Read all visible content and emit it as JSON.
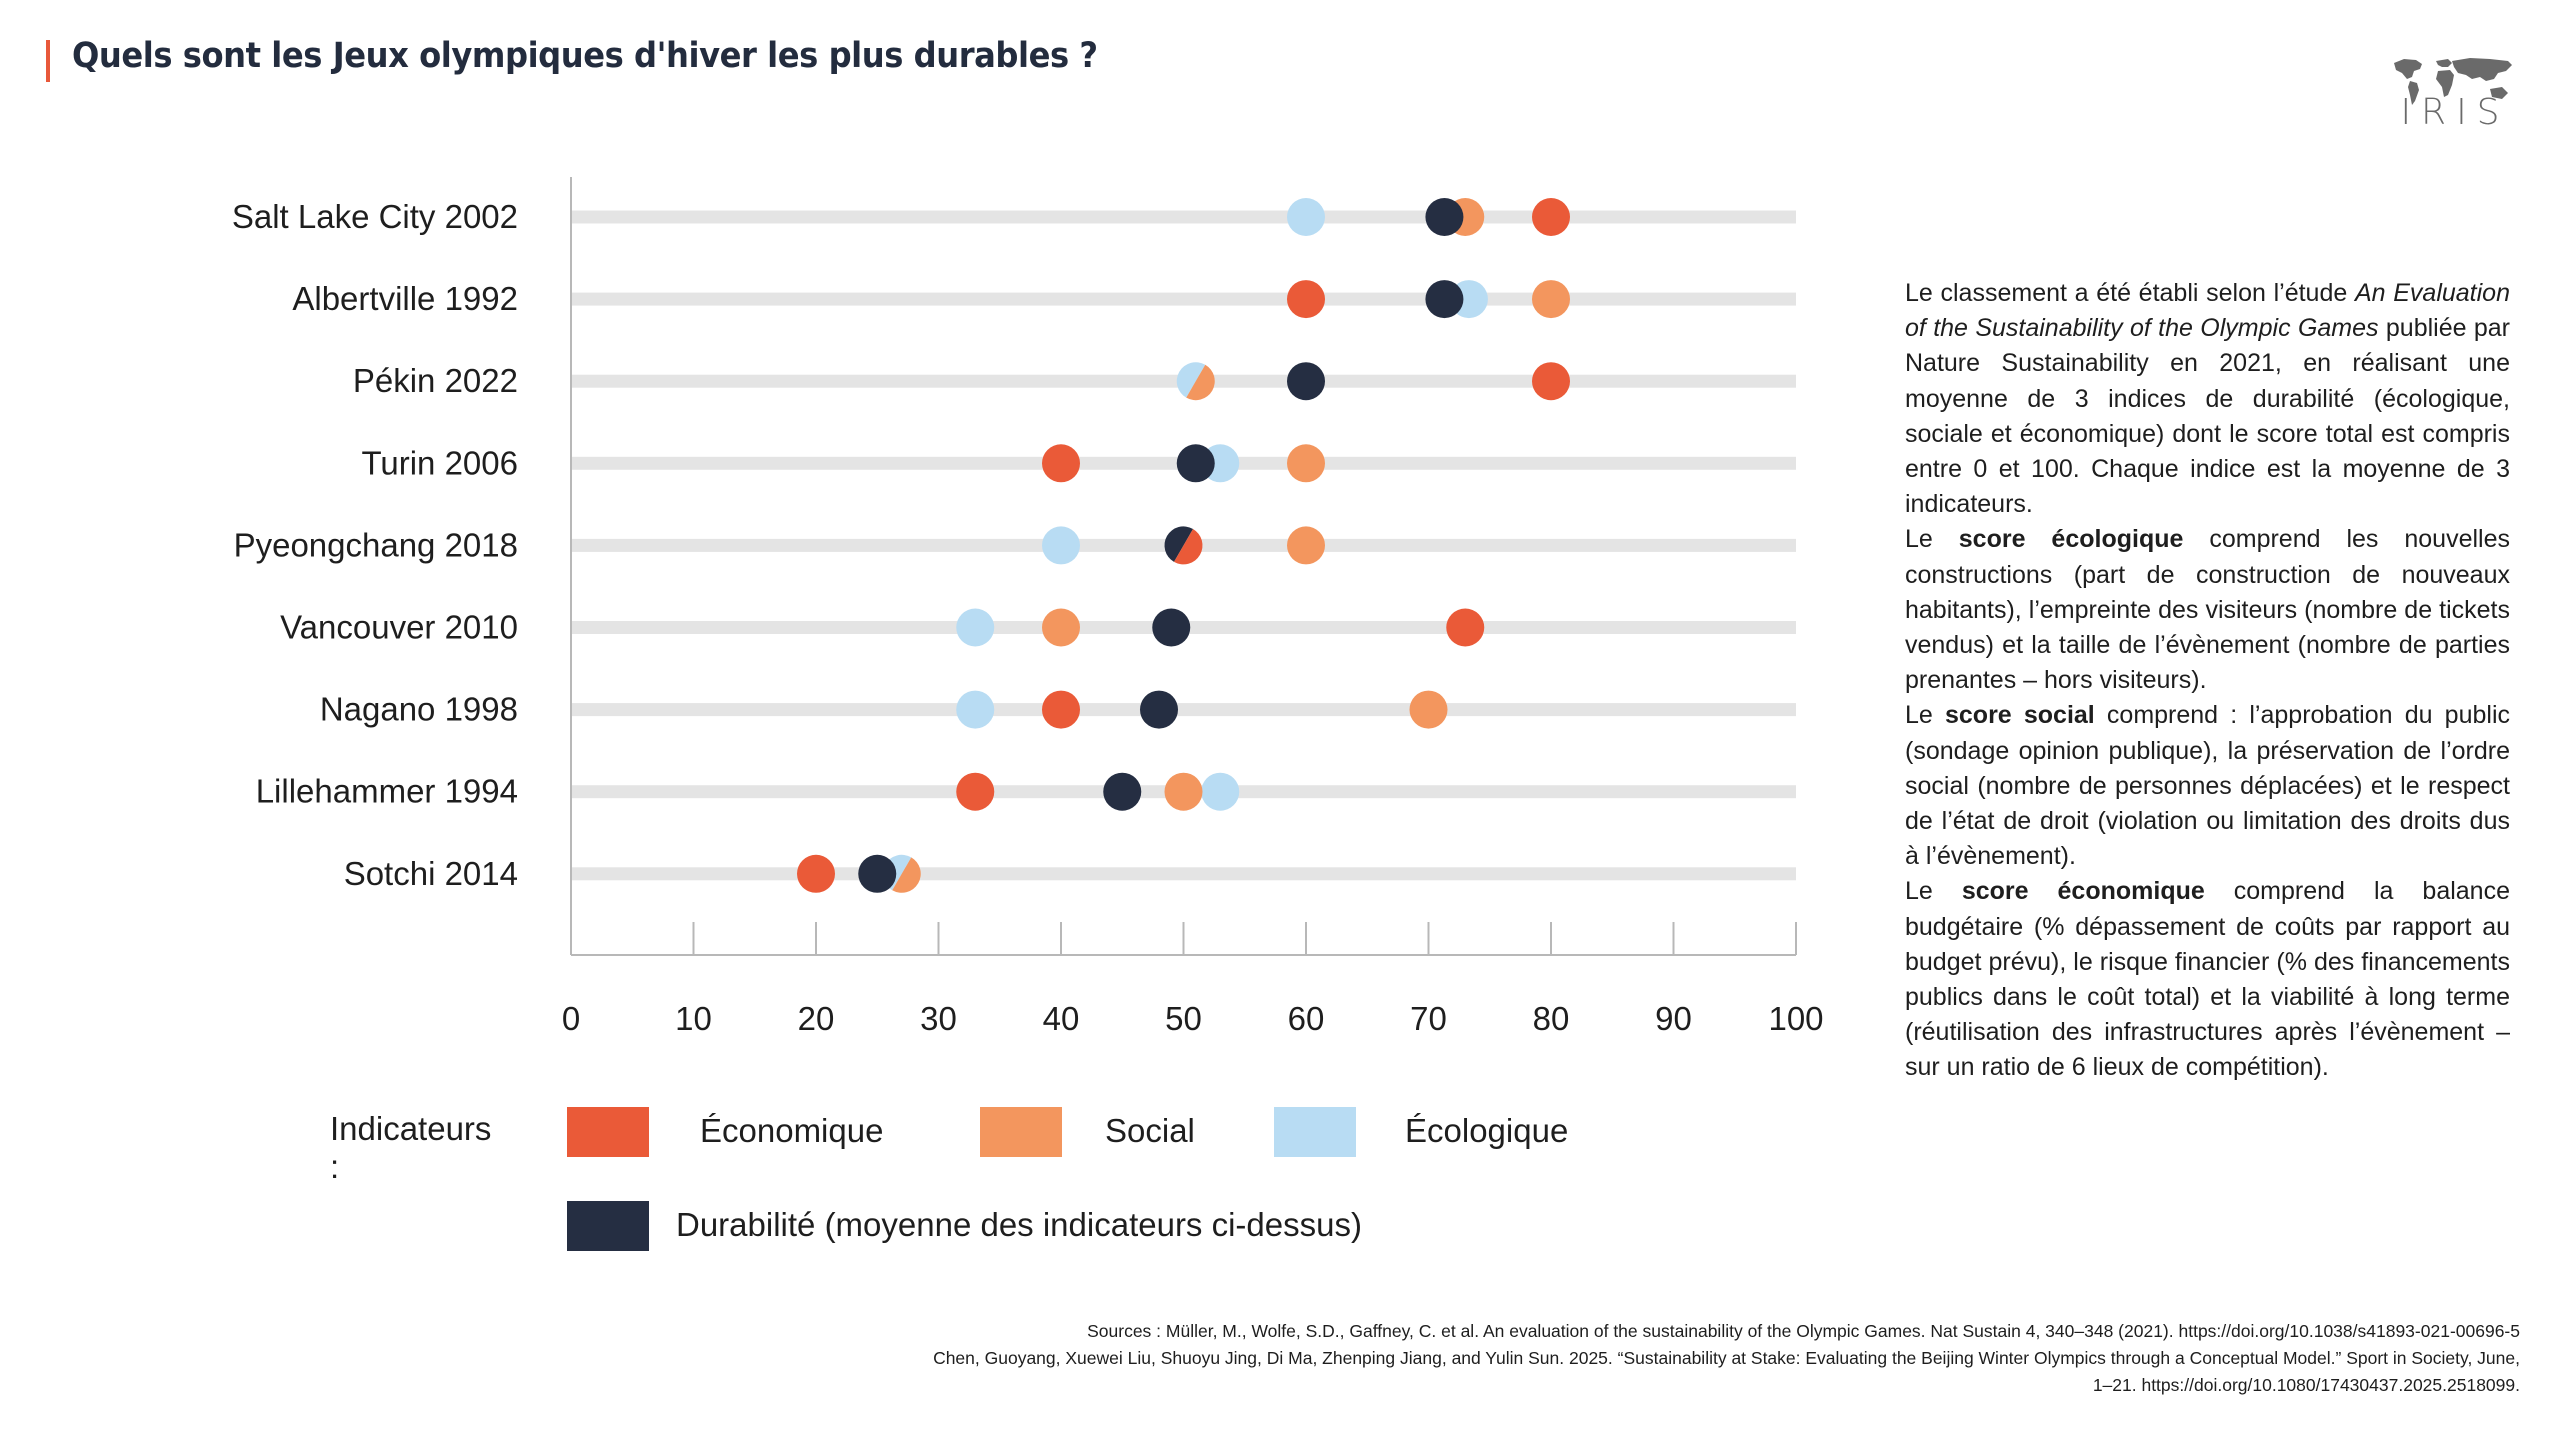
{
  "header": {
    "title": "Quels sont les Jeux olympiques d'hiver les plus durables ?",
    "accent_color": "#e8583a",
    "logo_text": "IRIS",
    "logo_icon": "world-map-icon"
  },
  "chart_data": {
    "type": "scatter",
    "subtype": "dot-plot",
    "title": "Quels sont les Jeux olympiques d'hiver les plus durables ?",
    "xlabel": "",
    "ylabel": "",
    "xlim": [
      0,
      100
    ],
    "x_ticks": [
      0,
      10,
      20,
      30,
      40,
      50,
      60,
      70,
      80,
      90,
      100
    ],
    "grid": false,
    "categories": [
      "Salt Lake City 2002",
      "Albertville 1992",
      "Pékin 2022",
      "Turin 2006",
      "Pyeongchang 2018",
      "Vancouver 2010",
      "Nagano 1998",
      "Lillehammer 1994",
      "Sotchi 2014"
    ],
    "series": [
      {
        "key": "economique",
        "name": "Économique",
        "color": "#ea5a38",
        "values": [
          80,
          60,
          80,
          40,
          50,
          73,
          40,
          33,
          20
        ]
      },
      {
        "key": "social",
        "name": "Social",
        "color": "#f3965e",
        "values": [
          73,
          80,
          51,
          60,
          60,
          40,
          70,
          50,
          27
        ]
      },
      {
        "key": "ecologique",
        "name": "Écologique",
        "color": "#b8dcf3",
        "values": [
          60,
          73.3,
          51,
          53,
          40,
          33,
          33,
          53,
          27
        ]
      },
      {
        "key": "durabilite",
        "name": "Durabilité (moyenne des indicateurs ci-dessus)",
        "color": "#252e42",
        "values": [
          71.3,
          71.3,
          60,
          51,
          50,
          49,
          48,
          45,
          25
        ]
      }
    ],
    "legend_title": "Indicateurs :",
    "legend_position": "bottom"
  },
  "legend": {
    "title": "Indicateurs :",
    "items": [
      {
        "label": "Économique",
        "color": "#ea5a38"
      },
      {
        "label": "Social",
        "color": "#f3965e"
      },
      {
        "label": "Écologique",
        "color": "#b8dcf3"
      },
      {
        "label": "Durabilité (moyenne des indicateurs ci-dessus)",
        "color": "#252e42"
      }
    ]
  },
  "description": {
    "p1_a": "Le classement a été établi selon l’étude ",
    "p1_italic": "An Evaluation of the Sustainability of the Olympic Games",
    "p1_b": " publiée par Nature Sustainability en 2021, en réalisant une moyenne de 3 indices de durabilité (écologique, sociale et économique) dont le score total est compris entre 0 et 100. Chaque indice est la moyenne de 3 indicateurs.",
    "p2_a": "Le ",
    "p2_bold": "score écologique",
    "p2_b": " comprend les nouvelles constructions (part de construction de nouveaux habitants), l’empreinte des visiteurs (nombre de tickets vendus) et la taille de l’évènement (nombre de parties prenantes – hors visiteurs).",
    "p3_a": "Le ",
    "p3_bold": "score social",
    "p3_b": " comprend : l’approbation du public (sondage opinion publique), la préservation de l’ordre social (nombre de personnes déplacées) et le respect de l’état de droit (violation ou limitation des droits dus à l’évènement).",
    "p4_a": "Le ",
    "p4_bold": "score économique",
    "p4_b": " comprend la balance budgétaire (% dépassement de coûts par rapport au budget prévu), le risque financier (% des financements publics dans le coût total) et la viabilité à long terme (réutilisation des infrastructures après l’évènement – sur un ratio de 6 lieux de compétition)."
  },
  "sources": {
    "line1": "Sources : Müller, M., Wolfe, S.D., Gaffney, C. et al. An evaluation of the sustainability of the Olympic Games. Nat Sustain 4, 340–348 (2021). https://doi.org/10.1038/s41893-021-00696-5",
    "line2": "Chen, Guoyang, Xuewei Liu, Shuoyu Jing, Di Ma, Zhenping Jiang, and Yulin Sun. 2025. “Sustainability at Stake: Evaluating the Beijing Winter Olympics through a Conceptual Model.” Sport in Society, June, 1–21. https://doi.org/10.1080/17430437.2025.2518099."
  }
}
